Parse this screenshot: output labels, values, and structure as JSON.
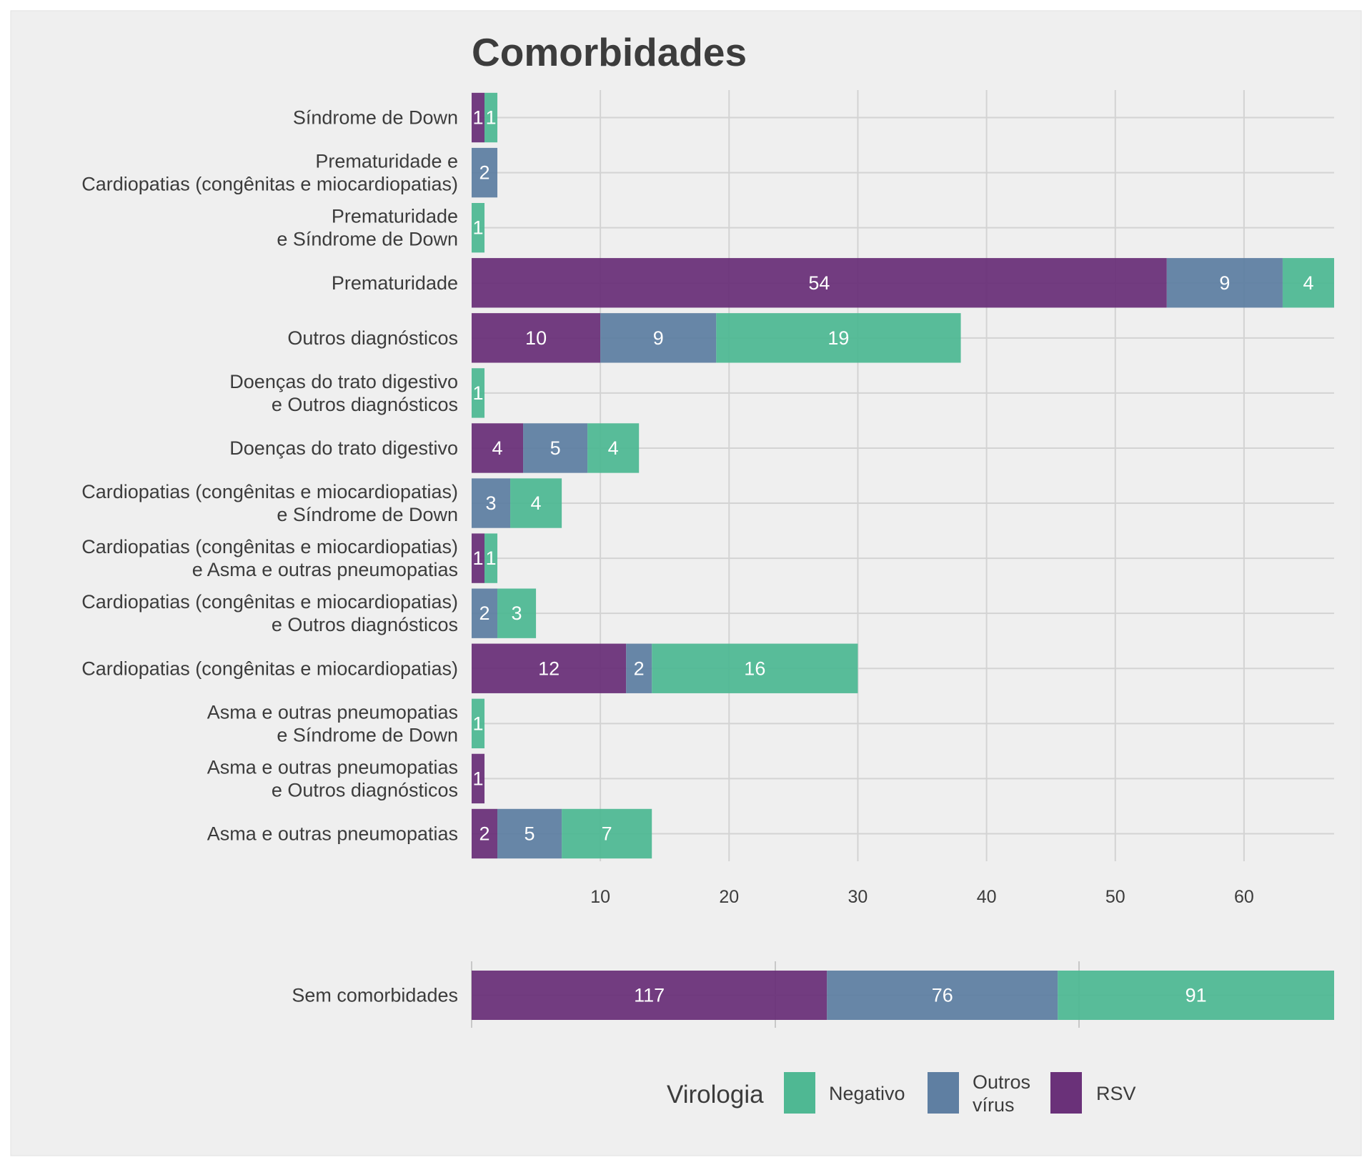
{
  "chart_data": [
    {
      "type": "bar",
      "orientation": "horizontal",
      "stacked": true,
      "title": "Comorbidades",
      "xlabel": "",
      "ylabel": "",
      "xlim": [
        0,
        67
      ],
      "x_ticks": [
        10,
        20,
        30,
        40,
        50,
        60
      ],
      "grid": true,
      "categories": [
        [
          "Síndrome de Down"
        ],
        [
          "Prematuridade e",
          "Cardiopatias (congênitas e miocardiopatias)"
        ],
        [
          "Prematuridade",
          "e Síndrome de Down"
        ],
        [
          "Prematuridade"
        ],
        [
          "Outros diagnósticos"
        ],
        [
          "Doenças do trato digestivo",
          "e Outros diagnósticos"
        ],
        [
          "Doenças do trato digestivo"
        ],
        [
          "Cardiopatias (congênitas e miocardiopatias)",
          "e Síndrome de Down"
        ],
        [
          "Cardiopatias (congênitas e miocardiopatias)",
          "e Asma e outras pneumopatias"
        ],
        [
          "Cardiopatias (congênitas e miocardiopatias)",
          "e Outros diagnósticos"
        ],
        [
          "Cardiopatias (congênitas e miocardiopatias)"
        ],
        [
          "Asma e outras pneumopatias",
          "e Síndrome de Down"
        ],
        [
          "Asma e outras pneumopatias",
          "e Outros diagnósticos"
        ],
        [
          "Asma e outras pneumopatias"
        ]
      ],
      "series": [
        {
          "name": "RSV",
          "values": [
            1,
            0,
            0,
            54,
            10,
            0,
            4,
            0,
            1,
            0,
            12,
            0,
            1,
            2
          ]
        },
        {
          "name": "Outros vírus",
          "values": [
            0,
            2,
            0,
            9,
            9,
            0,
            5,
            3,
            0,
            2,
            2,
            0,
            0,
            5
          ]
        },
        {
          "name": "Negativo",
          "values": [
            1,
            0,
            1,
            4,
            19,
            1,
            4,
            4,
            1,
            3,
            16,
            1,
            0,
            7
          ]
        }
      ]
    },
    {
      "type": "bar",
      "orientation": "horizontal",
      "stacked": true,
      "title": "",
      "xlim": [
        0,
        284
      ],
      "grid": true,
      "categories": [
        [
          "Sem comorbidades"
        ]
      ],
      "series": [
        {
          "name": "RSV",
          "values": [
            117
          ]
        },
        {
          "name": "Outros vírus",
          "values": [
            76
          ]
        },
        {
          "name": "Negativo",
          "values": [
            91
          ]
        }
      ]
    }
  ],
  "legend": {
    "title": "Virologia",
    "position": "bottom",
    "items": [
      {
        "key": "Negativo",
        "lines": [
          "Negativo"
        ]
      },
      {
        "key": "Outros vírus",
        "lines": [
          "Outros",
          "vírus"
        ]
      },
      {
        "key": "RSV",
        "lines": [
          "RSV"
        ]
      }
    ]
  },
  "colors": {
    "RSV": "#6a3179",
    "Outros vírus": "#5f7fa2",
    "Negativo": "#4fb893",
    "panel_background": "#efefef",
    "grid": "#d3d3d3",
    "text": "#3c3c3c"
  }
}
